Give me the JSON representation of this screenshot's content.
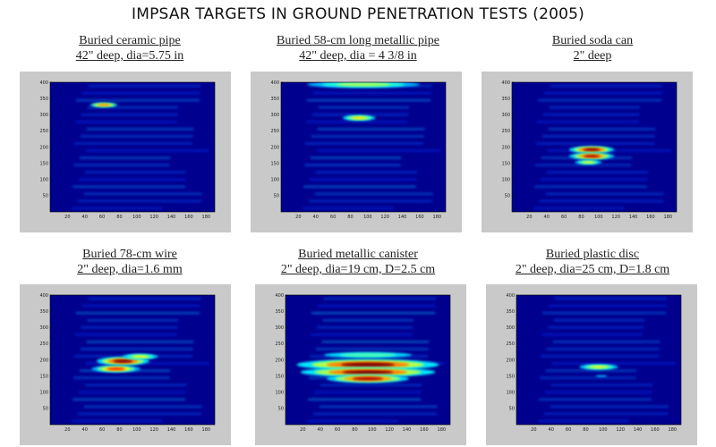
{
  "title": "IMPSAR TARGETS IN GROUND PENETRATION TESTS (2005)",
  "colors": {
    "background": "#00008f",
    "frame": "#c9c9c9"
  },
  "chart_data": [
    {
      "type": "heatmap",
      "caption": [
        "Buried ceramic pipe",
        "42\" deep, dia=5.75 in"
      ],
      "xlim": [
        0,
        190
      ],
      "ylim": [
        0,
        400
      ],
      "xticks": [
        20,
        40,
        60,
        80,
        100,
        120,
        140,
        160,
        180
      ],
      "yticks": [
        50,
        100,
        150,
        200,
        250,
        300,
        350,
        400
      ],
      "hotspots": [
        {
          "x": 62,
          "y": 330,
          "w": 9,
          "h": 4,
          "level": 0.75
        }
      ],
      "texture": 0.1
    },
    {
      "type": "heatmap",
      "caption": [
        "Buried 58-cm long metallic pipe",
        "42\" deep, dia = 4  3/8 in"
      ],
      "xlim": [
        0,
        190
      ],
      "ylim": [
        0,
        400
      ],
      "xticks": [
        20,
        40,
        60,
        80,
        100,
        120,
        140,
        160,
        180
      ],
      "yticks": [
        50,
        100,
        150,
        200,
        250,
        300,
        350,
        400
      ],
      "hotspots": [
        {
          "x": 95,
          "y": 393,
          "w": 38,
          "h": 6,
          "level": 0.55
        },
        {
          "x": 90,
          "y": 290,
          "w": 11,
          "h": 5,
          "level": 0.65
        }
      ],
      "texture": 0.12
    },
    {
      "type": "heatmap",
      "caption": [
        "Buried soda can",
        "2\" deep"
      ],
      "xlim": [
        0,
        190
      ],
      "ylim": [
        0,
        400
      ],
      "xticks": [
        20,
        40,
        60,
        80,
        100,
        120,
        140,
        160,
        180
      ],
      "yticks": [
        50,
        100,
        150,
        200,
        250,
        300,
        350,
        400
      ],
      "hotspots": [
        {
          "x": 92,
          "y": 192,
          "w": 12,
          "h": 5,
          "level": 1.0
        },
        {
          "x": 92,
          "y": 172,
          "w": 12,
          "h": 5,
          "level": 0.95
        },
        {
          "x": 88,
          "y": 153,
          "w": 9,
          "h": 4,
          "level": 0.6
        }
      ],
      "texture": 0.08
    },
    {
      "type": "heatmap",
      "caption": [
        "Buried 78-cm wire",
        "2\" deep, dia=1.6 mm"
      ],
      "xlim": [
        0,
        190
      ],
      "ylim": [
        0,
        400
      ],
      "xticks": [
        20,
        40,
        60,
        80,
        100,
        120,
        140,
        160,
        180
      ],
      "yticks": [
        50,
        100,
        150,
        200,
        250,
        300,
        350,
        400
      ],
      "hotspots": [
        {
          "x": 84,
          "y": 196,
          "w": 14,
          "h": 6,
          "level": 1.0
        },
        {
          "x": 104,
          "y": 210,
          "w": 12,
          "h": 5,
          "level": 0.6
        },
        {
          "x": 76,
          "y": 172,
          "w": 13,
          "h": 5,
          "level": 0.85
        }
      ],
      "texture": 0.12
    },
    {
      "type": "heatmap",
      "caption": [
        "Buried metallic canister",
        "2\" deep, dia=19 cm, D=2.5 cm"
      ],
      "xlim": [
        0,
        190
      ],
      "ylim": [
        0,
        400
      ],
      "xticks": [
        20,
        40,
        60,
        80,
        100,
        120,
        140,
        160,
        180
      ],
      "yticks": [
        50,
        100,
        150,
        200,
        250,
        300,
        350,
        400
      ],
      "hotspots": [
        {
          "x": 95,
          "y": 215,
          "w": 40,
          "h": 7,
          "level": 0.45
        },
        {
          "x": 95,
          "y": 185,
          "w": 38,
          "h": 8,
          "level": 1.0
        },
        {
          "x": 95,
          "y": 162,
          "w": 36,
          "h": 7,
          "level": 1.0
        },
        {
          "x": 95,
          "y": 142,
          "w": 22,
          "h": 6,
          "level": 0.95
        }
      ],
      "texture": 0.14
    },
    {
      "type": "heatmap",
      "caption": [
        "Buried plastic disc",
        "2\" deep, dia=25 cm, D=1.8 cm"
      ],
      "xlim": [
        0,
        190
      ],
      "ylim": [
        0,
        400
      ],
      "xticks": [
        20,
        40,
        60,
        80,
        100,
        120,
        140,
        160,
        180
      ],
      "yticks": [
        50,
        100,
        150,
        200,
        250,
        300,
        350,
        400
      ],
      "hotspots": [
        {
          "x": 95,
          "y": 178,
          "w": 13,
          "h": 5,
          "level": 0.6
        },
        {
          "x": 98,
          "y": 150,
          "w": 8,
          "h": 4,
          "level": 0.3
        }
      ],
      "texture": 0.08
    }
  ]
}
